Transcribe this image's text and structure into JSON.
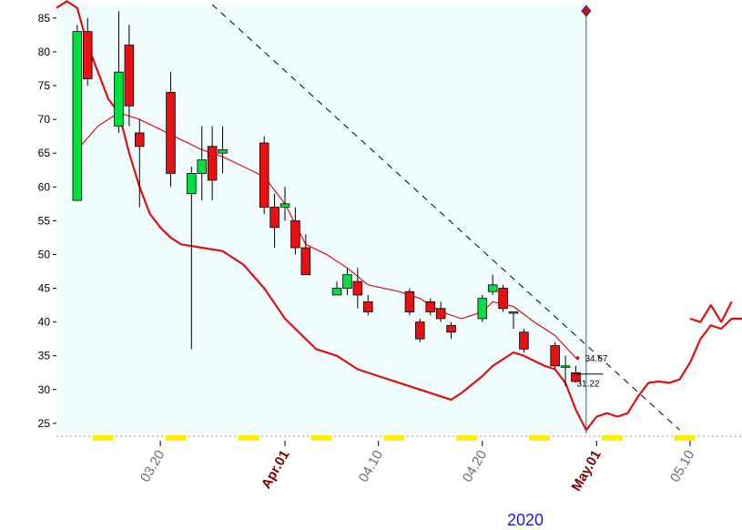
{
  "chart_data": {
    "type": "candlestick",
    "year_label": "2020",
    "ylim": [
      23.5,
      87
    ],
    "yticks": [
      25,
      30,
      35,
      40,
      45,
      50,
      55,
      60,
      65,
      70,
      75,
      80,
      85
    ],
    "xlim": [
      "2020-03-10",
      "2020-05-15"
    ],
    "xticks": [
      {
        "date": "2020-03-20",
        "label": "03.20",
        "bold": false
      },
      {
        "date": "2020-04-01",
        "label": "Apr.01",
        "bold": true
      },
      {
        "date": "2020-04-10",
        "label": "04.10",
        "bold": false
      },
      {
        "date": "2020-04-20",
        "label": "04.20",
        "bold": false
      },
      {
        "date": "2020-05-01",
        "label": "May.01",
        "bold": true
      },
      {
        "date": "2020-05-10",
        "label": "05.10",
        "bold": false
      }
    ],
    "candles": [
      {
        "date": "2020-03-12",
        "open": 58,
        "high": 84,
        "low": 58,
        "close": 83
      },
      {
        "date": "2020-03-13",
        "open": 83,
        "high": 85,
        "low": 75,
        "close": 76
      },
      {
        "date": "2020-03-16",
        "open": 69,
        "high": 86,
        "low": 68,
        "close": 77
      },
      {
        "date": "2020-03-17",
        "open": 81,
        "high": 84,
        "low": 69,
        "close": 72
      },
      {
        "date": "2020-03-18",
        "open": 68,
        "high": 70,
        "low": 57,
        "close": 66
      },
      {
        "date": "2020-03-21",
        "open": 74,
        "high": 77,
        "low": 60,
        "close": 62
      },
      {
        "date": "2020-03-23",
        "open": 59,
        "high": 63,
        "low": 36,
        "close": 62
      },
      {
        "date": "2020-03-24",
        "open": 62,
        "high": 69,
        "low": 58,
        "close": 64
      },
      {
        "date": "2020-03-25",
        "open": 66,
        "high": 69,
        "low": 58,
        "close": 61
      },
      {
        "date": "2020-03-26",
        "open": 65,
        "high": 69,
        "low": 62,
        "close": 65.5
      },
      {
        "date": "2020-03-30",
        "open": 66.5,
        "high": 67.5,
        "low": 56,
        "close": 57
      },
      {
        "date": "2020-03-31",
        "open": 57,
        "high": 59,
        "low": 51,
        "close": 54
      },
      {
        "date": "2020-04-01",
        "open": 57,
        "high": 60,
        "low": 55,
        "close": 57.5
      },
      {
        "date": "2020-04-02",
        "open": 55,
        "high": 57,
        "low": 50,
        "close": 51
      },
      {
        "date": "2020-04-03",
        "open": 51,
        "high": 53,
        "low": 47,
        "close": 47
      },
      {
        "date": "2020-04-06",
        "open": 44,
        "high": 46,
        "low": 44,
        "close": 45
      },
      {
        "date": "2020-04-07",
        "open": 45,
        "high": 48,
        "low": 44,
        "close": 47
      },
      {
        "date": "2020-04-08",
        "open": 46,
        "high": 48,
        "low": 42,
        "close": 44
      },
      {
        "date": "2020-04-09",
        "open": 43,
        "high": 44,
        "low": 41,
        "close": 41.5
      },
      {
        "date": "2020-04-13",
        "open": 44.5,
        "high": 45,
        "low": 41,
        "close": 41.5
      },
      {
        "date": "2020-04-14",
        "open": 40,
        "high": 40.5,
        "low": 37,
        "close": 37.5
      },
      {
        "date": "2020-04-15",
        "open": 43,
        "high": 43.5,
        "low": 41,
        "close": 41.5
      },
      {
        "date": "2020-04-16",
        "open": 42,
        "high": 43,
        "low": 40,
        "close": 40.5
      },
      {
        "date": "2020-04-17",
        "open": 39.5,
        "high": 40,
        "low": 37.5,
        "close": 38.5
      },
      {
        "date": "2020-04-20",
        "open": 40.5,
        "high": 44,
        "low": 40,
        "close": 43.5
      },
      {
        "date": "2020-04-21",
        "open": 44.5,
        "high": 47,
        "low": 44,
        "close": 45.5
      },
      {
        "date": "2020-04-22",
        "open": 45,
        "high": 45.5,
        "low": 41.5,
        "close": 42
      },
      {
        "date": "2020-04-23",
        "open": 41.5,
        "high": 41.5,
        "low": 39,
        "close": 41.5
      },
      {
        "date": "2020-04-24",
        "open": 38.5,
        "high": 39,
        "low": 35.5,
        "close": 36
      },
      {
        "date": "2020-04-27",
        "open": 36.5,
        "high": 37,
        "low": 33,
        "close": 33.5
      },
      {
        "date": "2020-04-28",
        "open": 33.5,
        "high": 35,
        "low": 30.5,
        "close": 33.5
      },
      {
        "date": "2020-04-29",
        "open": 32.5,
        "high": 33.5,
        "low": 31,
        "close": 31.2
      }
    ],
    "moving_average": [
      [
        "2020-03-12",
        65.5
      ],
      [
        "2020-03-14",
        69
      ],
      [
        "2020-03-16",
        71
      ],
      [
        "2020-03-18",
        70
      ],
      [
        "2020-03-20",
        68.5
      ],
      [
        "2020-03-22",
        67
      ],
      [
        "2020-03-24",
        65.5
      ],
      [
        "2020-03-26",
        64.5
      ],
      [
        "2020-03-28",
        63
      ],
      [
        "2020-03-30",
        61.5
      ],
      [
        "2020-04-01",
        57.5
      ],
      [
        "2020-04-03",
        51.5
      ],
      [
        "2020-04-05",
        50
      ],
      [
        "2020-04-07",
        48
      ],
      [
        "2020-04-09",
        45.5
      ],
      [
        "2020-04-12",
        44.5
      ],
      [
        "2020-04-14",
        43.5
      ],
      [
        "2020-04-16",
        41.5
      ],
      [
        "2020-04-18",
        40.5
      ],
      [
        "2020-04-20",
        41.5
      ],
      [
        "2020-04-21",
        43
      ],
      [
        "2020-04-23",
        42.3
      ],
      [
        "2020-04-25",
        40
      ],
      [
        "2020-04-27",
        38
      ],
      [
        "2020-04-29",
        34.67
      ]
    ],
    "lower_band": [
      [
        "2020-03-10",
        86.5
      ],
      [
        "2020-03-11",
        87.5
      ],
      [
        "2020-03-12",
        86.5
      ],
      [
        "2020-03-13",
        81
      ],
      [
        "2020-03-15",
        73
      ],
      [
        "2020-03-16",
        71
      ],
      [
        "2020-03-17",
        65
      ],
      [
        "2020-03-18",
        60
      ],
      [
        "2020-03-19",
        56
      ],
      [
        "2020-03-20",
        54
      ],
      [
        "2020-03-21",
        52.5
      ],
      [
        "2020-03-22",
        51.5
      ],
      [
        "2020-03-24",
        51
      ],
      [
        "2020-03-26",
        50.5
      ],
      [
        "2020-03-28",
        48.5
      ],
      [
        "2020-03-30",
        45
      ],
      [
        "2020-04-01",
        40.5
      ],
      [
        "2020-04-03",
        37.5
      ],
      [
        "2020-04-04",
        36
      ],
      [
        "2020-04-06",
        35
      ],
      [
        "2020-04-08",
        33
      ],
      [
        "2020-04-10",
        32
      ],
      [
        "2020-04-12",
        31
      ],
      [
        "2020-04-14",
        30
      ],
      [
        "2020-04-16",
        29
      ],
      [
        "2020-04-17",
        28.5
      ],
      [
        "2020-04-18",
        29.5
      ],
      [
        "2020-04-20",
        32
      ],
      [
        "2020-04-21",
        33.5
      ],
      [
        "2020-04-23",
        35.5
      ],
      [
        "2020-04-24",
        35
      ],
      [
        "2020-04-26",
        33.5
      ],
      [
        "2020-04-27",
        33
      ],
      [
        "2020-04-28",
        31
      ],
      [
        "2020-04-29",
        27
      ],
      [
        "2020-04-30",
        24
      ],
      [
        "2020-05-01",
        26
      ],
      [
        "2020-05-02",
        26.5
      ],
      [
        "2020-05-03",
        26
      ],
      [
        "2020-05-04",
        26.5
      ],
      [
        "2020-05-05",
        29
      ],
      [
        "2020-05-06",
        31
      ],
      [
        "2020-05-07",
        31.2
      ],
      [
        "2020-05-08",
        31
      ],
      [
        "2020-05-09",
        31.5
      ],
      [
        "2020-05-10",
        34
      ],
      [
        "2020-05-11",
        37.5
      ],
      [
        "2020-05-12",
        39.5
      ],
      [
        "2020-05-13",
        39
      ],
      [
        "2020-05-14",
        40.5
      ],
      [
        "2020-05-15",
        40.5
      ]
    ],
    "extra_band_tail": [
      [
        "2020-05-10",
        40.5
      ],
      [
        "2020-05-11",
        40
      ],
      [
        "2020-05-12",
        42.5
      ],
      [
        "2020-05-13",
        40
      ],
      [
        "2020-05-14",
        43
      ]
    ],
    "trendline": [
      [
        "2020-03-25",
        87
      ],
      [
        "2020-05-09",
        24
      ]
    ],
    "cursor_date": "2020-04-30",
    "value_labels": [
      {
        "date": "2020-04-29",
        "value": 34.67,
        "text": "34.67"
      },
      {
        "date": "2020-04-29",
        "value": 31.22,
        "text": "31.22"
      }
    ],
    "highlight_range": [
      "2020-03-10",
      "2020-04-30"
    ],
    "colors": {
      "up": "#00e040",
      "down": "#e81010",
      "ma": "#e01010",
      "band": "#e01010",
      "highlight_bg": "#f0fcfd",
      "axis_bold": "#800000",
      "year": "#1a1adf",
      "marker": "#ffee00"
    }
  }
}
